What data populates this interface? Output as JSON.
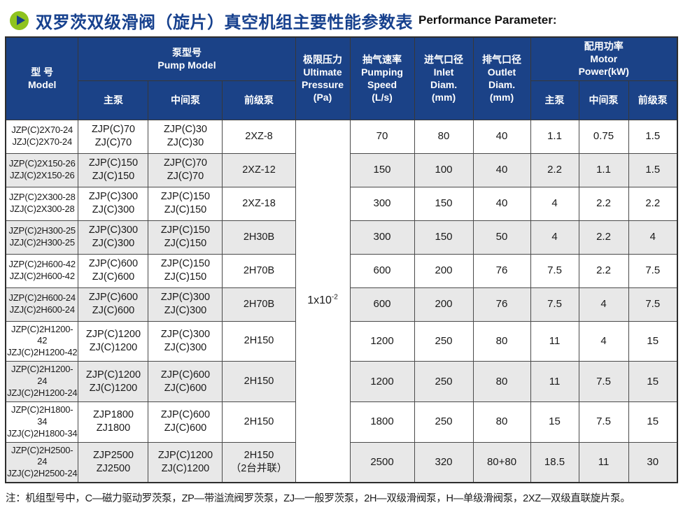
{
  "title": {
    "zh": "双罗茨双级滑阀（旋片）真空机组主要性能参数表",
    "en": "Performance Parameter:"
  },
  "colors": {
    "header_bg": "#1b4287",
    "title_blue": "#17418e",
    "icon_green": "#8fc31e",
    "stripe_gray": "#e8e8e8"
  },
  "table": {
    "headers": {
      "model": "型  号\nModel",
      "pump_model": "泵型号\nPump Model",
      "sub_main": "主泵",
      "sub_mid": "中间泵",
      "sub_fore": "前级泵",
      "ultimate_pressure": "极限压力\nUltimate\nPressure\n(Pa)",
      "pumping_speed": "抽气速率\nPumping\nSpeed\n(L/s)",
      "inlet_diam": "进气口径\nInlet\nDiam.\n(mm)",
      "outlet_diam": "排气口径\nOutlet\nDiam.\n(mm)",
      "motor_power": "配用功率\nMotor\nPower(kW)"
    },
    "ultimate_pressure_value": {
      "base": "1x10",
      "exponent": "-2"
    },
    "rows": [
      {
        "model": "JZP(C)2X70-24\nJZJ(C)2X70-24",
        "main": "ZJP(C)70\nZJ(C)70",
        "mid": "ZJP(C)30\nZJ(C)30",
        "fore": "2XZ-8",
        "speed": "70",
        "inlet": "80",
        "outlet": "40",
        "p_main": "1.1",
        "p_mid": "0.75",
        "p_fore": "1.5"
      },
      {
        "model": "JZP(C)2X150-26\nJZJ(C)2X150-26",
        "main": "ZJP(C)150\nZJ(C)150",
        "mid": "ZJP(C)70\nZJ(C)70",
        "fore": "2XZ-12",
        "speed": "150",
        "inlet": "100",
        "outlet": "40",
        "p_main": "2.2",
        "p_mid": "1.1",
        "p_fore": "1.5"
      },
      {
        "model": "JZP(C)2X300-28\nJZJ(C)2X300-28",
        "main": "ZJP(C)300\nZJ(C)300",
        "mid": "ZJP(C)150\nZJ(C)150",
        "fore": "2XZ-18",
        "speed": "300",
        "inlet": "150",
        "outlet": "40",
        "p_main": "4",
        "p_mid": "2.2",
        "p_fore": "2.2"
      },
      {
        "model": "JZP(C)2H300-25\nJZJ(C)2H300-25",
        "main": "ZJP(C)300\nZJ(C)300",
        "mid": "ZJP(C)150\nZJ(C)150",
        "fore": "2H30B",
        "speed": "300",
        "inlet": "150",
        "outlet": "50",
        "p_main": "4",
        "p_mid": "2.2",
        "p_fore": "4"
      },
      {
        "model": "JZP(C)2H600-42\nJZJ(C)2H600-42",
        "main": "ZJP(C)600\nZJ(C)600",
        "mid": "ZJP(C)150\nZJ(C)150",
        "fore": "2H70B",
        "speed": "600",
        "inlet": "200",
        "outlet": "76",
        "p_main": "7.5",
        "p_mid": "2.2",
        "p_fore": "7.5"
      },
      {
        "model": "JZP(C)2H600-24\nJZJ(C)2H600-24",
        "main": "ZJP(C)600\nZJ(C)600",
        "mid": "ZJP(C)300\nZJ(C)300",
        "fore": "2H70B",
        "speed": "600",
        "inlet": "200",
        "outlet": "76",
        "p_main": "7.5",
        "p_mid": "4",
        "p_fore": "7.5"
      },
      {
        "model": "JZP(C)2H1200-42\nJZJ(C)2H1200-42",
        "main": "ZJP(C)1200\nZJ(C)1200",
        "mid": "ZJP(C)300\nZJ(C)300",
        "fore": "2H150",
        "speed": "1200",
        "inlet": "250",
        "outlet": "80",
        "p_main": "11",
        "p_mid": "4",
        "p_fore": "15"
      },
      {
        "model": "JZP(C)2H1200-24\nJZJ(C)2H1200-24",
        "main": "ZJP(C)1200\nZJ(C)1200",
        "mid": "ZJP(C)600\nZJ(C)600",
        "fore": "2H150",
        "speed": "1200",
        "inlet": "250",
        "outlet": "80",
        "p_main": "11",
        "p_mid": "7.5",
        "p_fore": "15"
      },
      {
        "model": "JZP(C)2H1800-34\nJZJ(C)2H1800-34",
        "main": "ZJP1800\nZJ1800",
        "mid": "ZJP(C)600\nZJ(C)600",
        "fore": "2H150",
        "speed": "1800",
        "inlet": "250",
        "outlet": "80",
        "p_main": "15",
        "p_mid": "7.5",
        "p_fore": "15"
      },
      {
        "model": "JZP(C)2H2500-24\nJZJ(C)2H2500-24",
        "main": "ZJP2500\nZJ2500",
        "mid": "ZJP(C)1200\nZJ(C)1200",
        "fore": "2H150\n（2台并联）",
        "speed": "2500",
        "inlet": "320",
        "outlet": "80+80",
        "p_main": "18.5",
        "p_mid": "11",
        "p_fore": "30"
      }
    ]
  },
  "footnote": "注：机组型号中，C—磁力驱动罗茨泵，ZP—带溢流阀罗茨泵，ZJ—一般罗茨泵，2H—双级滑阀泵，H—单级滑阀泵，2XZ—双级直联旋片泵。"
}
